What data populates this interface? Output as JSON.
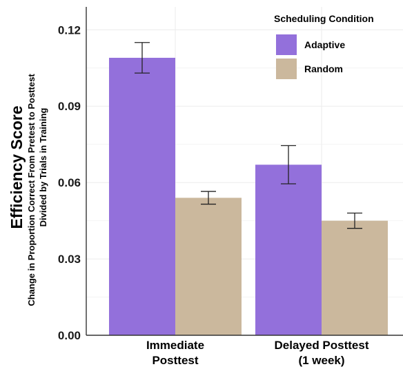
{
  "chart_data": {
    "type": "bar",
    "ylabel": "Efficiency Score",
    "ylabel_sub": [
      "Change in Proportion Correct From Pretest to Posttest",
      "Divided by Trials in Training"
    ],
    "categories": [
      [
        "Immediate",
        "Posttest"
      ],
      [
        "Delayed Posttest",
        "(1 week)"
      ]
    ],
    "series": [
      {
        "name": "Adaptive",
        "color": "#9370db",
        "values": [
          0.109,
          0.067
        ],
        "error": [
          0.006,
          0.0075
        ]
      },
      {
        "name": "Random",
        "color": "#cbb89d",
        "values": [
          0.054,
          0.045
        ],
        "error": [
          0.0025,
          0.003
        ]
      }
    ],
    "ylim": [
      0,
      0.129
    ],
    "yticks": [
      "0.00",
      "0.03",
      "0.06",
      "0.09",
      "0.12"
    ],
    "grid": true,
    "legend": {
      "title": "Scheduling Condition",
      "placement": "top-right"
    }
  }
}
